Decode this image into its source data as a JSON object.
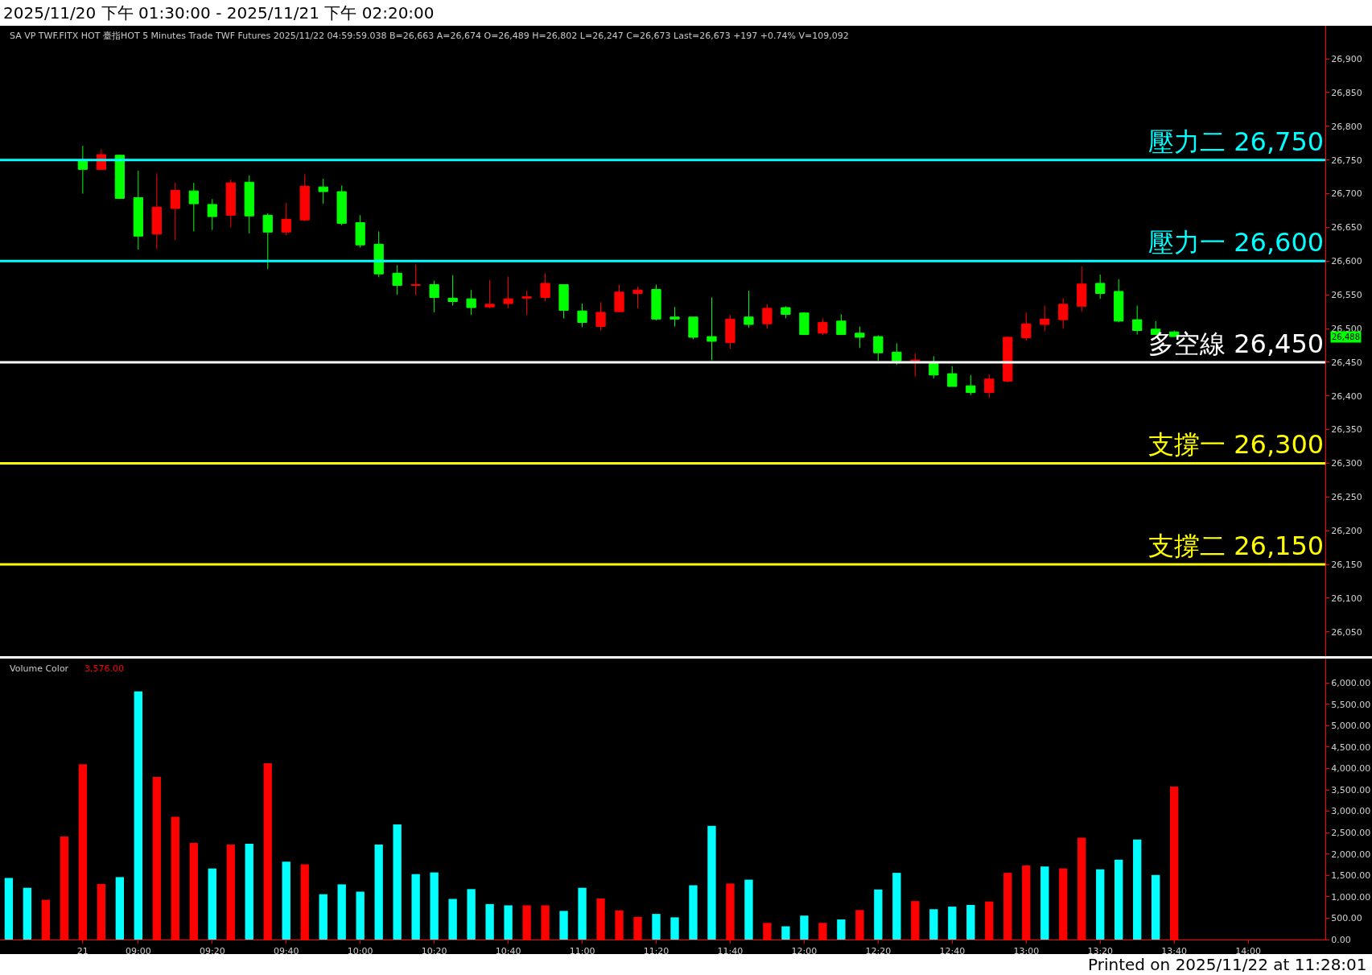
{
  "chart_data": [
    {
      "type": "candlestick",
      "title": "2025/11/20 下午 01:30:00 - 2025/11/21 下午 02:20:00",
      "categories": [
        null,
        null,
        null,
        null,
        null,
        null,
        null,
        null,
        null,
        null,
        null,
        null,
        null,
        null,
        null,
        null,
        null,
        null,
        null,
        null,
        null,
        null,
        null,
        null,
        null,
        null,
        null,
        null,
        null,
        null,
        null,
        null,
        null,
        null,
        null,
        null,
        null,
        null,
        null,
        null,
        null,
        null,
        null,
        null,
        null,
        null,
        null,
        null,
        null,
        null,
        null,
        null,
        null,
        null,
        null,
        null,
        null,
        null,
        null,
        null,
        null,
        null,
        null,
        null,
        null,
        null,
        null,
        null,
        null,
        null,
        null,
        null,
        null
      ],
      "ohlc": [
        null,
        null,
        null,
        null,
        [
          26748,
          26771,
          26700,
          26736
        ],
        [
          26736,
          26766,
          26735,
          26758
        ],
        [
          26757,
          26758,
          26692,
          26693
        ],
        [
          26694,
          26734,
          26617,
          26637
        ],
        [
          26640,
          26730,
          26618,
          26680
        ],
        [
          26678,
          26716,
          26631,
          26705
        ],
        [
          26704,
          26716,
          26644,
          26685
        ],
        [
          26684,
          26692,
          26646,
          26666
        ],
        [
          26668,
          26721,
          26650,
          26716
        ],
        [
          26717,
          26727,
          26641,
          26667
        ],
        [
          26668,
          26671,
          26588,
          26643
        ],
        [
          26643,
          26686,
          26638,
          26662
        ],
        [
          26661,
          26729,
          26659,
          26711
        ],
        [
          26710,
          26722,
          26685,
          26703
        ],
        [
          26703,
          26712,
          26653,
          26656
        ],
        [
          26657,
          26668,
          26620,
          26624
        ],
        [
          26625,
          26644,
          26576,
          26581
        ],
        [
          26582,
          26594,
          26550,
          26564
        ],
        [
          26564,
          26595,
          26549,
          26565
        ],
        [
          26565,
          26571,
          26524,
          26546
        ],
        [
          26545,
          26579,
          26534,
          26540
        ],
        [
          26544,
          26557,
          26520,
          26531
        ],
        [
          26532,
          26572,
          26530,
          26536
        ],
        [
          26537,
          26577,
          26530,
          26544
        ],
        [
          26545,
          26556,
          26520,
          26547
        ],
        [
          26546,
          26582,
          26540,
          26567
        ],
        [
          26565,
          26565,
          26515,
          26527
        ],
        [
          26526,
          26537,
          26502,
          26509
        ],
        [
          26503,
          26539,
          26497,
          26524
        ],
        [
          26525,
          26565,
          26524,
          26554
        ],
        [
          26552,
          26562,
          26530,
          26557
        ],
        [
          26558,
          26565,
          26512,
          26514
        ],
        [
          26517,
          26532,
          26503,
          26514
        ],
        [
          26517,
          26517,
          26484,
          26487
        ],
        [
          26488,
          26546,
          26453,
          26481
        ],
        [
          26479,
          26520,
          26470,
          26514
        ],
        [
          26517,
          26556,
          26501,
          26506
        ],
        [
          26507,
          26536,
          26500,
          26530
        ],
        [
          26531,
          26533,
          26515,
          26521
        ],
        [
          26523,
          26524,
          26491,
          26491
        ],
        [
          26493,
          26515,
          26490,
          26509
        ],
        [
          26511,
          26521,
          26491,
          26491
        ],
        [
          26493,
          26503,
          26471,
          26487
        ],
        [
          26488,
          26490,
          26452,
          26464
        ],
        [
          26465,
          26478,
          26446,
          26452
        ],
        [
          26452,
          26463,
          26429,
          26453
        ],
        [
          26448,
          26459,
          26426,
          26431
        ],
        [
          26433,
          26444,
          26414,
          26414
        ],
        [
          26415,
          26431,
          26401,
          26405
        ],
        [
          26405,
          26432,
          26397,
          26425
        ],
        [
          26422,
          26488,
          26420,
          26487
        ],
        [
          26486,
          26524,
          26482,
          26507
        ],
        [
          26506,
          26534,
          26496,
          26514
        ],
        [
          26513,
          26545,
          26500,
          26536
        ],
        [
          26533,
          26592,
          26525,
          26566
        ],
        [
          26567,
          26580,
          26544,
          26552
        ],
        [
          26555,
          26573,
          26509,
          26511
        ],
        [
          26513,
          26534,
          26491,
          26497
        ],
        [
          26499,
          26511,
          26491,
          26491
        ],
        [
          26495,
          26497,
          26488,
          26488
        ],
        null,
        null,
        null,
        null,
        null,
        null,
        null,
        null,
        null
      ],
      "ylim": [
        26014,
        26949
      ],
      "yticks": [
        {
          "value": 26050,
          "label": "26,050"
        },
        {
          "value": 26100,
          "label": "26,100"
        },
        {
          "value": 26150,
          "label": "26,150"
        },
        {
          "value": 26200,
          "label": "26,200"
        },
        {
          "value": 26250,
          "label": "26,250"
        },
        {
          "value": 26300,
          "label": "26,300"
        },
        {
          "value": 26350,
          "label": "26,350"
        },
        {
          "value": 26400,
          "label": "26,400"
        },
        {
          "value": 26450,
          "label": "26,450"
        },
        {
          "value": 26500,
          "label": "26,500"
        },
        {
          "value": 26550,
          "label": "26,550"
        },
        {
          "value": 26600,
          "label": "26,600"
        },
        {
          "value": 26650,
          "label": "26,650"
        },
        {
          "value": 26700,
          "label": "26,700"
        },
        {
          "value": 26750,
          "label": "26,750"
        },
        {
          "value": 26800,
          "label": "26,800"
        },
        {
          "value": 26850,
          "label": "26,850"
        },
        {
          "value": 26900,
          "label": "26,900"
        }
      ],
      "tick_labels": "y",
      "grid": false,
      "ref_lines": [
        {
          "axis": "y",
          "value": 26750,
          "label": "壓力二 26,750",
          "color": "#00ffff"
        },
        {
          "axis": "y",
          "value": 26600,
          "label": "壓力一 26,600",
          "color": "#00ffff"
        },
        {
          "axis": "y",
          "value": 26450,
          "label": "多空線 26,450",
          "color": "#ffffff"
        },
        {
          "axis": "y",
          "value": 26300,
          "label": "支撐一 26,300",
          "color": "#ffff00"
        },
        {
          "axis": "y",
          "value": 26150,
          "label": "支撐二 26,150",
          "color": "#ffff00"
        }
      ],
      "annotations": [
        "SA VP TWF.FITX HOT 臺指HOT 5 Minutes Trade TWF Futures 2025/11/22 04:59:59.038 B=26,663 A=26,674 O=26,489 H=26,802 L=26,247 C=26,673 Last=26,673 +197 +0.74% V=109,092",
        {
          "text": "26,488",
          "y": 26488
        }
      ]
    },
    {
      "type": "bar",
      "categories": [
        null,
        null,
        null,
        null,
        "21",
        null,
        null,
        "09:00",
        null,
        null,
        null,
        "09:20",
        null,
        null,
        null,
        "09:40",
        null,
        null,
        null,
        "10:00",
        null,
        null,
        null,
        "10:20",
        null,
        null,
        null,
        "10:40",
        null,
        null,
        null,
        "11:00",
        null,
        null,
        null,
        "11:20",
        null,
        null,
        null,
        "11:40",
        null,
        null,
        null,
        "12:00",
        null,
        null,
        null,
        "12:20",
        null,
        null,
        null,
        "12:40",
        null,
        null,
        null,
        "13:00",
        null,
        null,
        null,
        "13:20",
        null,
        null,
        null,
        "13:40",
        null,
        null,
        null,
        "14:00",
        null,
        null,
        null,
        null,
        null
      ],
      "values": [
        1440,
        1210,
        930,
        2410,
        4100,
        1300,
        1460,
        5800,
        3800,
        2870,
        2260,
        1660,
        2220,
        2240,
        4120,
        1820,
        1760,
        1060,
        1290,
        1120,
        2220,
        2690,
        1530,
        1570,
        950,
        1180,
        830,
        800,
        800,
        800,
        670,
        1210,
        960,
        680,
        530,
        600,
        520,
        1270,
        2660,
        1310,
        1400,
        390,
        310,
        560,
        390,
        470,
        690,
        1170,
        1560,
        900,
        710,
        770,
        810,
        890,
        1560,
        1730,
        1710,
        1660,
        2380,
        1640,
        1870,
        2340,
        1510,
        3576,
        null,
        null,
        null,
        null,
        null,
        null,
        null,
        null,
        null
      ],
      "colors": [
        "#00ffff",
        "#00ffff",
        "#ff0000",
        "#ff0000",
        "#ff0000",
        "#ff0000",
        "#00ffff",
        "#00ffff",
        "#ff0000",
        "#ff0000",
        "#ff0000",
        "#00ffff",
        "#ff0000",
        "#00ffff",
        "#ff0000",
        "#00ffff",
        "#ff0000",
        "#00ffff",
        "#00ffff",
        "#00ffff",
        "#00ffff",
        "#00ffff",
        "#00ffff",
        "#00ffff",
        "#00ffff",
        "#00ffff",
        "#00ffff",
        "#00ffff",
        "#ff0000",
        "#ff0000",
        "#00ffff",
        "#00ffff",
        "#ff0000",
        "#ff0000",
        "#ff0000",
        "#00ffff",
        "#00ffff",
        "#00ffff",
        "#00ffff",
        "#ff0000",
        "#00ffff",
        "#ff0000",
        "#00ffff",
        "#00ffff",
        "#ff0000",
        "#00ffff",
        "#ff0000",
        "#00ffff",
        "#00ffff",
        "#ff0000",
        "#00ffff",
        "#00ffff",
        "#00ffff",
        "#ff0000",
        "#ff0000",
        "#ff0000",
        "#00ffff",
        "#ff0000",
        "#ff0000",
        "#00ffff",
        "#00ffff",
        "#00ffff",
        "#00ffff",
        "#ff0000",
        null,
        null,
        null,
        null,
        null,
        null,
        null,
        null,
        null
      ],
      "ylim": [
        0,
        6568
      ],
      "yticks": [
        {
          "value": 0,
          "label": "0.00"
        },
        {
          "value": 500,
          "label": "500.00"
        },
        {
          "value": 1000,
          "label": "1,000.00"
        },
        {
          "value": 1500,
          "label": "1,500.00"
        },
        {
          "value": 2000,
          "label": "2,000.00"
        },
        {
          "value": 2500,
          "label": "2,500.00"
        },
        {
          "value": 3000,
          "label": "3,000.00"
        },
        {
          "value": 3500,
          "label": "3,500.00"
        },
        {
          "value": 4000,
          "label": "4,000.00"
        },
        {
          "value": 4500,
          "label": "4,500.00"
        },
        {
          "value": 5000,
          "label": "5,000.00"
        },
        {
          "value": 5500,
          "label": "5,500.00"
        },
        {
          "value": 6000,
          "label": "6,000.00"
        }
      ],
      "grid": false,
      "annotations": [
        "Volume Color",
        "3,576.00",
        "Printed on 2025/11/22 at 11:28:01"
      ]
    }
  ]
}
